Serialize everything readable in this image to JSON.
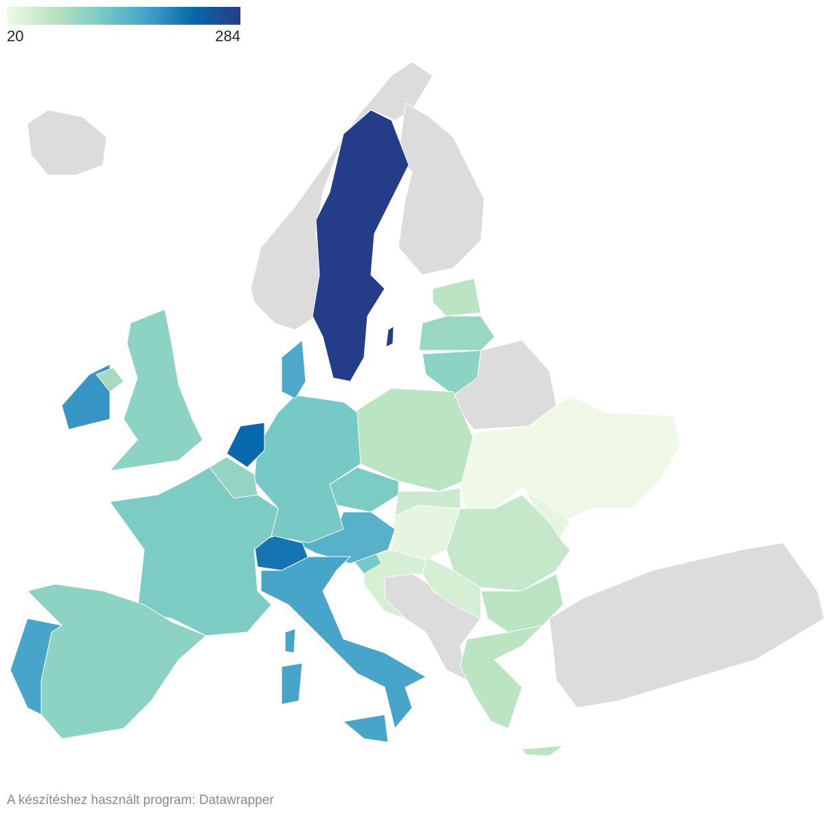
{
  "chart_data": {
    "type": "choropleth",
    "legend": {
      "min": 20,
      "max": 284,
      "colors": [
        "#f0f9e8",
        "#b8e3c0",
        "#7bccc4",
        "#43a2ca",
        "#0868ac",
        "#253d89"
      ]
    },
    "values": [
      284,
      284,
      70,
      100,
      110,
      70,
      20,
      30,
      60,
      70,
      70,
      70,
      45,
      45,
      130,
      30,
      55,
      125,
      160,
      130,
      170,
      230,
      105,
      220,
      125,
      175,
      175,
      175,
      175,
      110,
      175,
      190,
      110,
      90
    ],
    "credit": "A készítéshez használt program: Datawrapper"
  }
}
